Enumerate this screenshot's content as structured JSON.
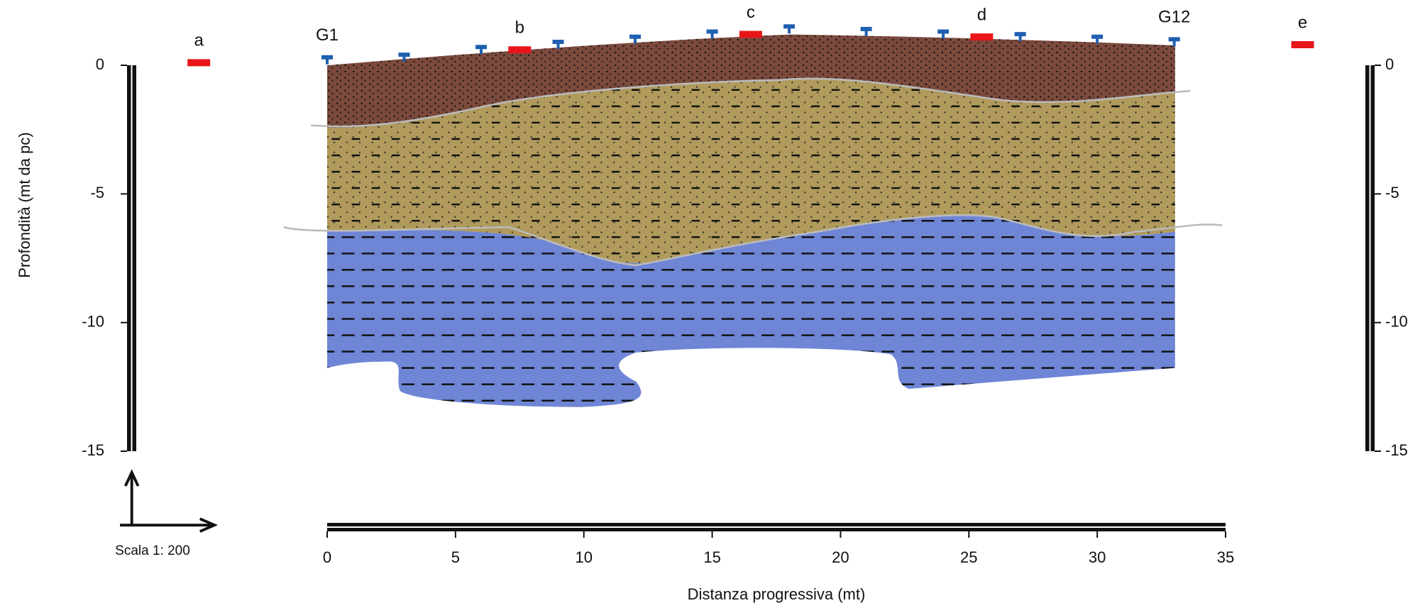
{
  "chart_data": {
    "type": "section",
    "xlabel": "Distanza progressiva (mt)",
    "ylabel": "Profondità (mt da pc)",
    "scale_label": "Scala 1: 200",
    "xlim": [
      0,
      35
    ],
    "xticks": [
      0,
      5,
      10,
      15,
      20,
      25,
      30,
      35
    ],
    "ylim": [
      -15,
      0
    ],
    "yticks": [
      0,
      -5,
      -10,
      -15
    ],
    "geophones": {
      "color": "#1f5fb0",
      "x": [
        0,
        3,
        6,
        9,
        12,
        15,
        18,
        21,
        24,
        27,
        30,
        33
      ],
      "elevation": [
        0.2,
        0.3,
        0.6,
        0.8,
        1.0,
        1.2,
        1.4,
        1.3,
        1.2,
        1.1,
        1.0,
        0.9
      ],
      "labels": [
        "G1",
        null,
        null,
        null,
        null,
        null,
        null,
        null,
        null,
        null,
        null,
        "G12"
      ]
    },
    "markers": {
      "color": "#e8161b",
      "labels": [
        "a",
        "b",
        "c",
        "d",
        "e"
      ],
      "x": [
        -5.0,
        7.5,
        16.5,
        25.5,
        38.0
      ],
      "elevation": [
        0.1,
        0.6,
        1.2,
        1.1,
        0.8
      ]
    }
  }
}
